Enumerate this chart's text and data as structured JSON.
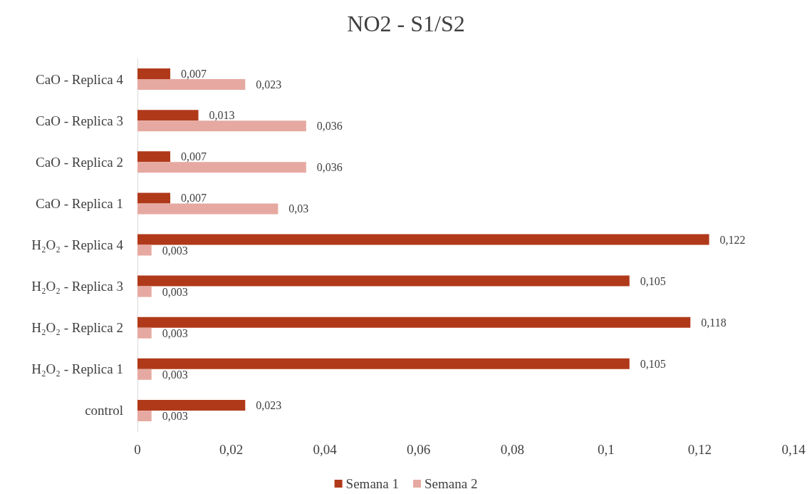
{
  "chart_data": {
    "type": "bar",
    "orientation": "horizontal",
    "title": "NO2 - S1/S2",
    "categories": [
      "CaO - Replica 4",
      "CaO - Replica 3",
      "CaO - Replica 2",
      "CaO - Replica 1",
      "H₂O₂ - Replica 4",
      "H₂O₂ - Replica 3",
      "H₂O₂ - Replica 2",
      "H₂O₂ - Replica 1",
      "control"
    ],
    "series": [
      {
        "name": "Semana 1",
        "color": "#b0391a",
        "values": [
          0.007,
          0.013,
          0.007,
          0.007,
          0.122,
          0.105,
          0.118,
          0.105,
          0.023
        ],
        "value_labels": [
          "0,007",
          "0,013",
          "0,007",
          "0,007",
          "0,122",
          "0,105",
          "0,118",
          "0,105",
          "0,023"
        ]
      },
      {
        "name": "Semana 2",
        "color": "#e6a9a1",
        "values": [
          0.023,
          0.036,
          0.036,
          0.03,
          0.003,
          0.003,
          0.003,
          0.003,
          0.003
        ],
        "value_labels": [
          "0,023",
          "0,036",
          "0,036",
          "0,03",
          "0,003",
          "0,003",
          "0,003",
          "0,003",
          "0,003"
        ]
      }
    ],
    "xlim": [
      0,
      0.14
    ],
    "xticks": [
      0,
      {
        "value": 0.02,
        "label": "0,02"
      },
      {
        "value": 0.04,
        "label": "0,04"
      },
      {
        "value": 0.06,
        "label": "0,06"
      },
      {
        "value": 0.08,
        "label": "0,08"
      },
      {
        "value": 0.1,
        "label": "0,1"
      },
      {
        "value": 0.12,
        "label": "0,12"
      },
      {
        "value": 0.14,
        "label": "0,14"
      }
    ],
    "grid": false,
    "legend": "bottom"
  }
}
